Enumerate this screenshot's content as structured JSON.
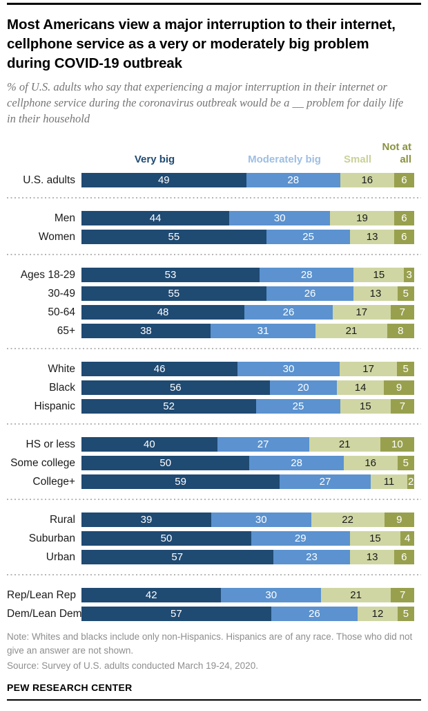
{
  "header": {
    "title": "Most Americans view a major interruption to their internet, cellphone service as a very or moderately big problem during COVID-19 outbreak",
    "subtitle": "% of U.S. adults who say that experiencing a major interruption in their internet or cellphone service during the coronavirus outbreak would be a __ problem for daily life in their household"
  },
  "legend": [
    {
      "label": "Very big",
      "color": "#1f4a72"
    },
    {
      "label": "Moderately big",
      "color": "#9dbee3"
    },
    {
      "label": "Small",
      "color": "#c9d197"
    },
    {
      "label": "Not at all",
      "color": "#8a923f"
    }
  ],
  "chart_data": {
    "type": "bar",
    "orientation": "horizontal",
    "stacked": true,
    "unit": "% of U.S. adults",
    "series_names": [
      "Very big",
      "Moderately big",
      "Small",
      "Not at all"
    ],
    "segment_colors": [
      "#1f4a72",
      "#5b92cf",
      "#cfd6a3",
      "#98a04e"
    ],
    "value_text_colors": [
      "#ffffff",
      "#ffffff",
      "#1a1a1a",
      "#ffffff"
    ],
    "groups": [
      {
        "rows": [
          {
            "label": "U.S. adults",
            "values": [
              49,
              28,
              16,
              6
            ]
          }
        ]
      },
      {
        "rows": [
          {
            "label": "Men",
            "values": [
              44,
              30,
              19,
              6
            ]
          },
          {
            "label": "Women",
            "values": [
              55,
              25,
              13,
              6
            ]
          }
        ]
      },
      {
        "rows": [
          {
            "label": "Ages 18-29",
            "values": [
              53,
              28,
              15,
              3
            ]
          },
          {
            "label": "30-49",
            "values": [
              55,
              26,
              13,
              5
            ]
          },
          {
            "label": "50-64",
            "values": [
              48,
              26,
              17,
              7
            ]
          },
          {
            "label": "65+",
            "values": [
              38,
              31,
              21,
              8
            ]
          }
        ]
      },
      {
        "rows": [
          {
            "label": "White",
            "values": [
              46,
              30,
              17,
              5
            ]
          },
          {
            "label": "Black",
            "values": [
              56,
              20,
              14,
              9
            ]
          },
          {
            "label": "Hispanic",
            "values": [
              52,
              25,
              15,
              7
            ]
          }
        ]
      },
      {
        "rows": [
          {
            "label": "HS or less",
            "values": [
              40,
              27,
              21,
              10
            ]
          },
          {
            "label": "Some college",
            "values": [
              50,
              28,
              16,
              5
            ]
          },
          {
            "label": "College+",
            "values": [
              59,
              27,
              11,
              2
            ]
          }
        ]
      },
      {
        "rows": [
          {
            "label": "Rural",
            "values": [
              39,
              30,
              22,
              9
            ]
          },
          {
            "label": "Suburban",
            "values": [
              50,
              29,
              15,
              4
            ]
          },
          {
            "label": "Urban",
            "values": [
              57,
              23,
              13,
              6
            ]
          }
        ]
      },
      {
        "rows": [
          {
            "label": "Rep/Lean Rep",
            "values": [
              42,
              30,
              21,
              7
            ]
          },
          {
            "label": "Dem/Lean Dem",
            "values": [
              57,
              26,
              12,
              5
            ]
          }
        ]
      }
    ]
  },
  "footer": {
    "note": "Note: Whites and blacks include only non-Hispanics. Hispanics are of any race. Those who did not give an answer are not shown.",
    "source": "Source: Survey of U.S. adults conducted March 19-24, 2020.",
    "brand": "PEW RESEARCH CENTER"
  }
}
